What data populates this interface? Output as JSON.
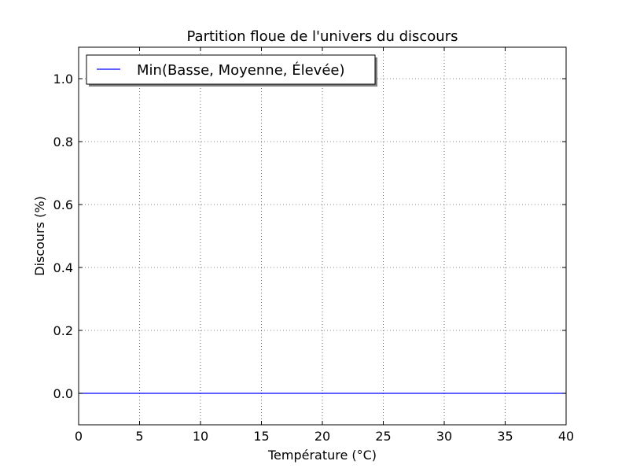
{
  "chart_data": {
    "type": "line",
    "title": "Partition floue de l'univers du discours",
    "xlabel": "Température (°C)",
    "ylabel": "Discours (%)",
    "xlim": [
      0,
      40
    ],
    "ylim": [
      -0.1,
      1.1
    ],
    "xticks": [
      0,
      5,
      10,
      15,
      20,
      25,
      30,
      35,
      40
    ],
    "xtick_labels": [
      "0",
      "5",
      "10",
      "15",
      "20",
      "25",
      "30",
      "35",
      "40"
    ],
    "yticks": [
      0.0,
      0.2,
      0.4,
      0.6,
      0.8,
      1.0
    ],
    "ytick_labels": [
      "0.0",
      "0.2",
      "0.4",
      "0.6",
      "0.8",
      "1.0"
    ],
    "grid": true,
    "legend_position": "top-left",
    "series": [
      {
        "name": "Min(Basse, Moyenne, Élevée)",
        "color": "#0000ff",
        "x": [
          0,
          40
        ],
        "y": [
          0,
          0
        ]
      }
    ]
  }
}
